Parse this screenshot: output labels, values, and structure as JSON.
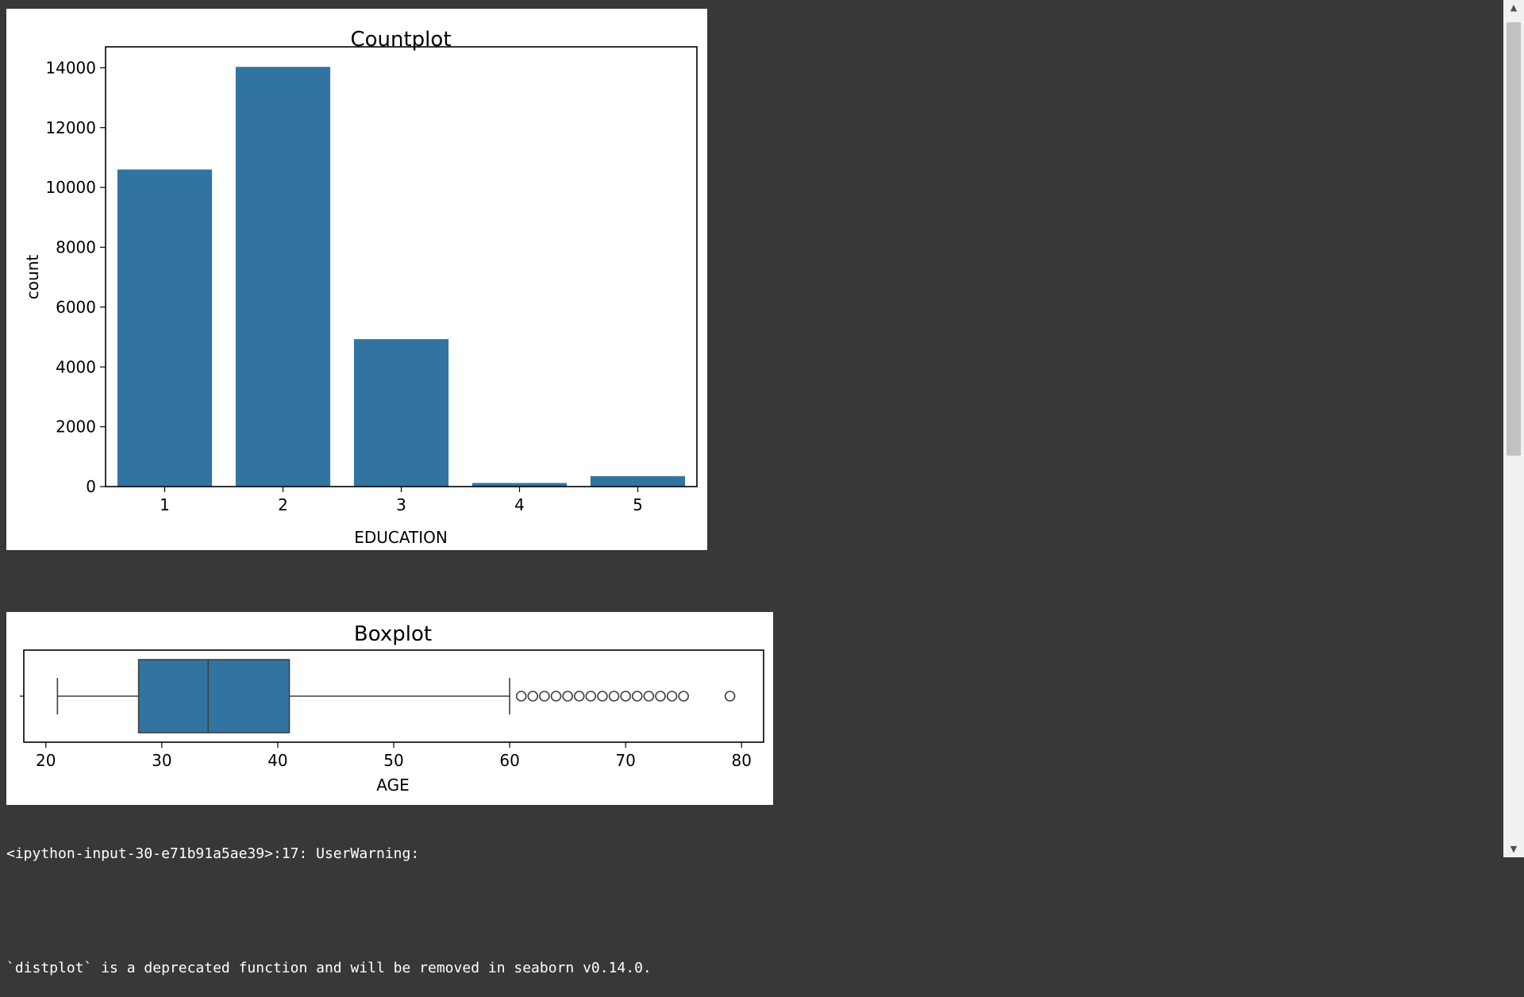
{
  "charts": {
    "countplot": {
      "title": "Countplot",
      "xlabel": "EDUCATION",
      "ylabel": "count",
      "yticks": [
        "0",
        "2000",
        "4000",
        "6000",
        "8000",
        "10000",
        "12000",
        "14000"
      ],
      "categories": [
        "1",
        "2",
        "3",
        "4",
        "5"
      ]
    },
    "boxplot": {
      "title": "Boxplot",
      "xlabel": "AGE",
      "xticks": [
        "20",
        "30",
        "40",
        "50",
        "60",
        "70",
        "80"
      ]
    }
  },
  "chart_data": [
    {
      "type": "bar",
      "title": "Countplot",
      "xlabel": "EDUCATION",
      "ylabel": "count",
      "categories": [
        "1",
        "2",
        "3",
        "4",
        "5"
      ],
      "values": [
        10600,
        14030,
        4930,
        120,
        350
      ],
      "ylim": [
        0,
        14700
      ],
      "grid": false,
      "color": "#3274a1"
    },
    {
      "type": "box",
      "title": "Boxplot",
      "xlabel": "AGE",
      "xlim": [
        18.1,
        81.9
      ],
      "whisker_low": 21,
      "q1": 28,
      "median": 34,
      "q3": 41,
      "whisker_high": 60,
      "outliers": [
        61,
        62,
        63,
        64,
        65,
        66,
        67,
        68,
        69,
        70,
        71,
        72,
        73,
        74,
        75,
        79
      ],
      "grid": false,
      "color": "#3274a1"
    }
  ],
  "console": {
    "line1": "<ipython-input-30-e71b91a5ae39>:17: UserWarning:",
    "line2": "`distplot` is a deprecated function and will be removed in seaborn v0.14.0."
  },
  "colors": {
    "background": "#383838",
    "bar": "#3274a1",
    "scrollbar_track": "#f1f1f1",
    "scrollbar_thumb": "#c1c1c1"
  }
}
